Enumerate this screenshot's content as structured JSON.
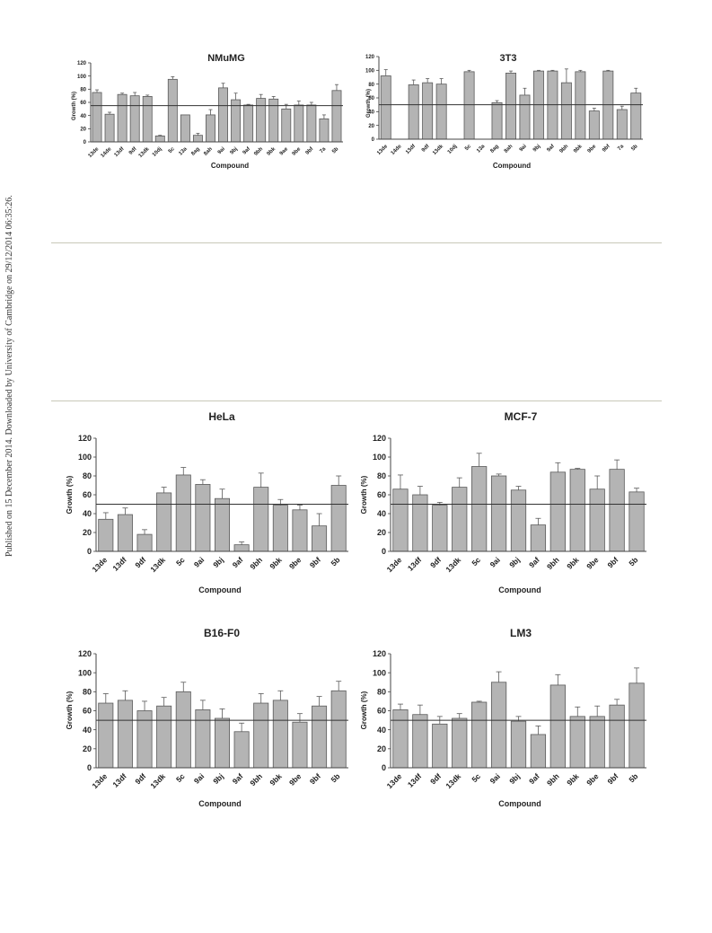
{
  "side_note": "Published on 15 December 2014. Downloaded by University of Cambridge on 29/12/2014 06:35:26.",
  "chart_data": [
    {
      "type": "bar",
      "title": "NMuMG",
      "xlabel": "Compound",
      "ylabel": "Growth (%)",
      "ylim": [
        0,
        120
      ],
      "yticks": [
        0,
        20,
        40,
        60,
        80,
        100,
        120
      ],
      "reference_line": 55,
      "categories": [
        "13de",
        "14de",
        "13df",
        "9df",
        "13dk",
        "10dj",
        "5c",
        "13a",
        "8ag",
        "8ah",
        "9ai",
        "9bj",
        "9af",
        "9bh",
        "9bk",
        "9ae",
        "9be",
        "9bf",
        "7a",
        "5b"
      ],
      "values": [
        75,
        42,
        72,
        70,
        69,
        9,
        95,
        41,
        10,
        41,
        82,
        64,
        56,
        66,
        65,
        50,
        56,
        56,
        35,
        78
      ],
      "errors": [
        4,
        3,
        2,
        5,
        2,
        1,
        4,
        0,
        3,
        8,
        7,
        10,
        1,
        6,
        4,
        7,
        6,
        4,
        6,
        9
      ],
      "grid": false
    },
    {
      "type": "bar",
      "title": "3T3",
      "xlabel": "Compound",
      "ylabel": "Growth (%)",
      "ylim": [
        0,
        120
      ],
      "yticks": [
        0,
        20,
        40,
        60,
        80,
        100,
        120
      ],
      "reference_line": 50,
      "categories": [
        "13de",
        "14de",
        "13df",
        "9df",
        "13dk",
        "10dj",
        "5c",
        "13a",
        "8ag",
        "8ah",
        "9ai",
        "9bj",
        "9af",
        "9bh",
        "9bk",
        "9be",
        "9bf",
        "7a",
        "5b"
      ],
      "values": [
        92,
        0,
        79,
        82,
        80,
        0,
        98,
        0,
        53,
        96,
        64,
        99,
        99,
        82,
        98,
        41,
        99,
        43,
        67
      ],
      "errors": [
        9,
        0,
        7,
        6,
        8,
        0,
        2,
        0,
        3,
        3,
        10,
        1,
        1,
        20,
        2,
        4,
        1,
        5,
        7
      ],
      "grid": false
    },
    {
      "type": "bar",
      "title": "HeLa",
      "xlabel": "Compound",
      "ylabel": "Growth (%)",
      "ylim": [
        0,
        120
      ],
      "yticks": [
        0,
        20,
        40,
        60,
        80,
        100,
        120
      ],
      "reference_line": 50,
      "categories": [
        "13de",
        "13df",
        "9df",
        "13dk",
        "5c",
        "9ai",
        "9bj",
        "9af",
        "9bh",
        "9bk",
        "9be",
        "9bf",
        "5b"
      ],
      "values": [
        34,
        39,
        18,
        62,
        81,
        71,
        56,
        7,
        68,
        49,
        44,
        27,
        70
      ],
      "errors": [
        7,
        7,
        5,
        6,
        8,
        5,
        10,
        3,
        15,
        6,
        5,
        13,
        10
      ],
      "grid": false
    },
    {
      "type": "bar",
      "title": "MCF-7",
      "xlabel": "Compound",
      "ylabel": "Growth (%)",
      "ylim": [
        0,
        120
      ],
      "yticks": [
        0,
        20,
        40,
        60,
        80,
        100,
        120
      ],
      "reference_line": 50,
      "categories": [
        "13de",
        "13df",
        "9df",
        "13dk",
        "5c",
        "9ai",
        "9bj",
        "9af",
        "9bh",
        "9bk",
        "9be",
        "9bf",
        "5b"
      ],
      "values": [
        66,
        60,
        49,
        68,
        90,
        80,
        65,
        28,
        84,
        87,
        66,
        87,
        63
      ],
      "errors": [
        15,
        9,
        3,
        10,
        14,
        2,
        4,
        7,
        10,
        1,
        14,
        10,
        4
      ],
      "grid": false
    },
    {
      "type": "bar",
      "title": "B16-F0",
      "xlabel": "Compound",
      "ylabel": "Growth (%)",
      "ylim": [
        0,
        120
      ],
      "yticks": [
        0,
        20,
        40,
        60,
        80,
        100,
        120
      ],
      "reference_line": 50,
      "categories": [
        "13de",
        "13df",
        "9df",
        "13dk",
        "5c",
        "9ai",
        "9bj",
        "9af",
        "9bh",
        "9bk",
        "9be",
        "9bf",
        "5b"
      ],
      "values": [
        68,
        71,
        60,
        65,
        80,
        61,
        52,
        38,
        68,
        71,
        48,
        65,
        81
      ],
      "errors": [
        10,
        10,
        10,
        9,
        10,
        10,
        10,
        9,
        10,
        10,
        9,
        10,
        10
      ],
      "grid": false
    },
    {
      "type": "bar",
      "title": "LM3",
      "xlabel": "Compound",
      "ylabel": "Growth (%)",
      "ylim": [
        0,
        120
      ],
      "yticks": [
        0,
        20,
        40,
        60,
        80,
        100,
        120
      ],
      "reference_line": 50,
      "categories": [
        "13de",
        "13df",
        "9df",
        "13dk",
        "5c",
        "9ai",
        "9bj",
        "9af",
        "9bh",
        "9bk",
        "9be",
        "9bf",
        "5b"
      ],
      "values": [
        61,
        56,
        46,
        52,
        69,
        90,
        49,
        35,
        87,
        54,
        54,
        66,
        89
      ],
      "errors": [
        6,
        10,
        8,
        5,
        1,
        11,
        5,
        9,
        11,
        10,
        11,
        6,
        16
      ],
      "grid": false
    }
  ],
  "colors": {
    "bar_fill": "#b4b4b4",
    "bar_stroke": "#5a5a5a",
    "axis": "#444444",
    "reference_line": "#333333"
  }
}
